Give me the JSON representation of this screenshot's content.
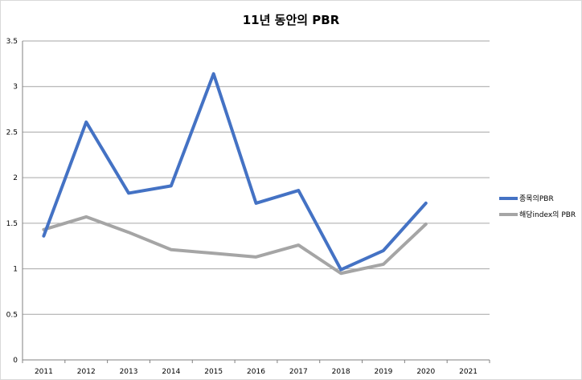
{
  "chart_data": {
    "type": "line",
    "title": "11년 동안의 PBR",
    "xlabel": "",
    "ylabel": "",
    "categories": [
      "2011",
      "2012",
      "2013",
      "2014",
      "2015",
      "2016",
      "2017",
      "2018",
      "2019",
      "2020",
      "2021"
    ],
    "y_ticks": [
      "0",
      "0.5",
      "1",
      "1.5",
      "2",
      "2.5",
      "3",
      "3.5"
    ],
    "ylim": [
      0,
      3.5
    ],
    "grid": true,
    "legend_position": "right",
    "series": [
      {
        "name": "종목의PBR",
        "color": "#4472c4",
        "values": [
          1.36,
          2.61,
          1.83,
          1.91,
          3.14,
          1.72,
          1.86,
          0.99,
          1.2,
          1.72,
          null
        ]
      },
      {
        "name": "해당index의 PBR",
        "color": "#a5a5a5",
        "values": [
          1.43,
          1.57,
          1.4,
          1.21,
          1.17,
          1.13,
          1.26,
          0.95,
          1.05,
          1.49,
          null
        ]
      }
    ]
  }
}
